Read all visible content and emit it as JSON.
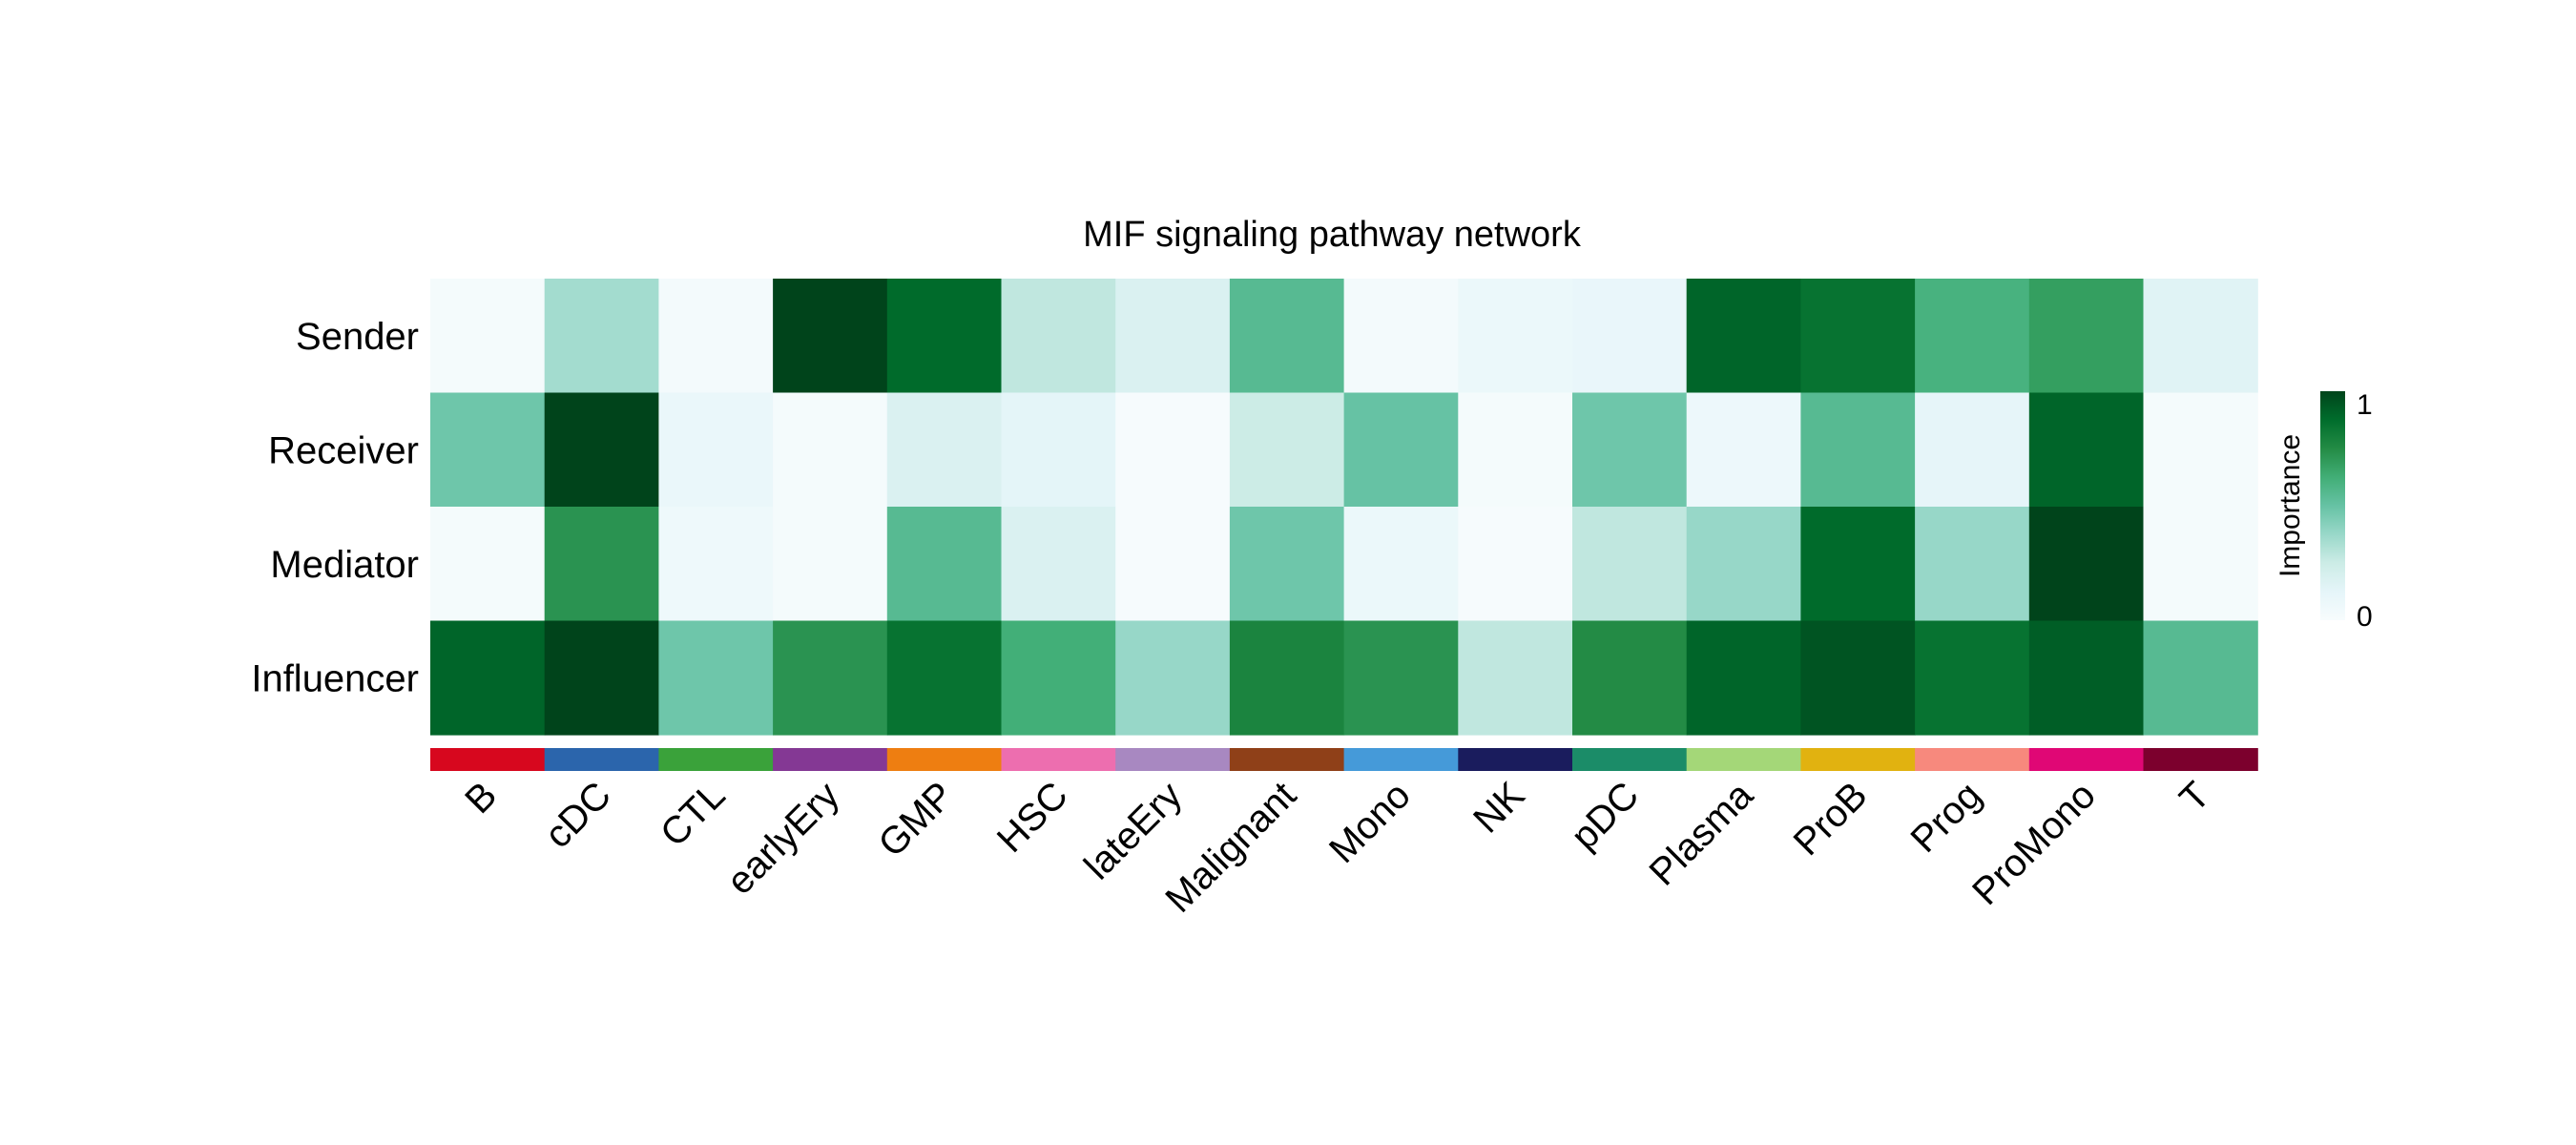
{
  "chart_data": {
    "type": "heatmap",
    "title": "MIF signaling pathway network",
    "rows": [
      "Sender",
      "Receiver",
      "Mediator",
      "Influencer"
    ],
    "columns": [
      "B",
      "cDC",
      "CTL",
      "earlyEry",
      "GMP",
      "HSC",
      "lateEry",
      "Malignant",
      "Mono",
      "NK",
      "pDC",
      "Plasma",
      "ProB",
      "Prog",
      "ProMono",
      "T"
    ],
    "values": [
      [
        0.02,
        0.35,
        0.03,
        1.0,
        0.88,
        0.28,
        0.18,
        0.55,
        0.03,
        0.08,
        0.1,
        0.9,
        0.85,
        0.6,
        0.68,
        0.15
      ],
      [
        0.48,
        1.0,
        0.09,
        0.02,
        0.18,
        0.13,
        0.01,
        0.25,
        0.5,
        0.02,
        0.48,
        0.07,
        0.55,
        0.12,
        0.9,
        0.02
      ],
      [
        0.02,
        0.72,
        0.06,
        0.02,
        0.55,
        0.18,
        0.01,
        0.48,
        0.08,
        0.01,
        0.28,
        0.38,
        0.88,
        0.38,
        1.0,
        0.02
      ],
      [
        0.9,
        1.0,
        0.48,
        0.72,
        0.85,
        0.62,
        0.38,
        0.78,
        0.72,
        0.28,
        0.75,
        0.9,
        0.95,
        0.85,
        0.92,
        0.55
      ]
    ],
    "cell_type_colors": [
      "#d7071e",
      "#2b65ac",
      "#3aa23a",
      "#843894",
      "#ee7e11",
      "#ed6eaf",
      "#a888c1",
      "#8f4018",
      "#459ad9",
      "#1a1c5d",
      "#1b8c68",
      "#a4d778",
      "#e1b210",
      "#f7897d",
      "#e00775",
      "#7c002d"
    ],
    "color_scale": {
      "low": "#f7fcfd",
      "mid": "#66c2a4",
      "high": "#00441b",
      "stops": [
        "#f7fcfd",
        "#e5f5f9",
        "#ccece6",
        "#99d8c9",
        "#66c2a4",
        "#41ae76",
        "#238b45",
        "#006d2c",
        "#00441b"
      ]
    },
    "legend": {
      "title": "Importance",
      "max_label": "1",
      "min_label": "0",
      "placement": "right"
    },
    "vrange": [
      0,
      1
    ]
  }
}
